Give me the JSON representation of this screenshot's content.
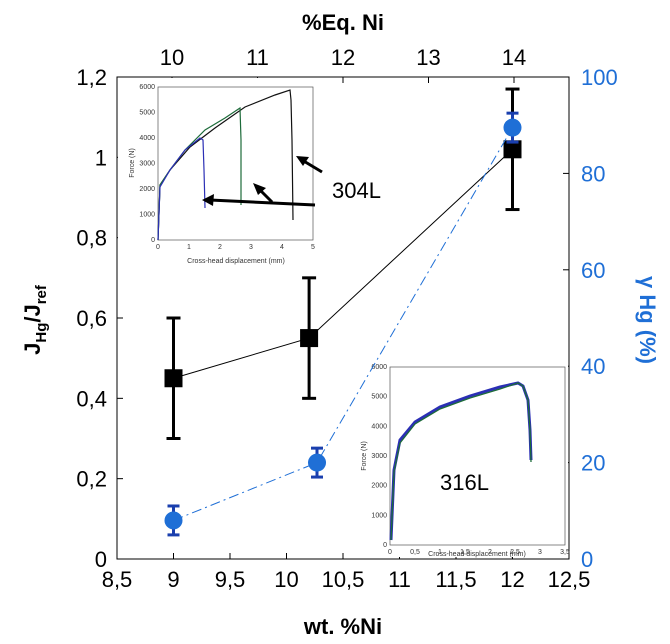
{
  "chart_data": {
    "type": "line",
    "main": {
      "xlabel": "wt. %Ni",
      "x_top_label": "%Eq. Ni",
      "ylabel_left": "J_Hg/J_ref",
      "ylabel_right": "γ Hg (%)",
      "xlim": [
        8.5,
        12.5
      ],
      "ylim_left": [
        0,
        1.2
      ],
      "ylim_right": [
        0,
        100
      ],
      "x_ticks": [
        "8,5",
        "9",
        "9,5",
        "10",
        "10,5",
        "11",
        "11,5",
        "12",
        "12,5"
      ],
      "y_left_ticks": [
        "0",
        "0,2",
        "0,4",
        "0,6",
        "0,8",
        "1",
        "1,2"
      ],
      "y_right_ticks": [
        "0",
        "20",
        "40",
        "60",
        "80",
        "100"
      ],
      "x_top_ticks": [
        "10",
        "11",
        "12",
        "13",
        "14"
      ],
      "colors": {
        "series_J": "#000000",
        "series_gamma": "#1f6fd6"
      },
      "series": [
        {
          "axis": "left",
          "x": [
            9.0,
            10.2,
            12.0
          ],
          "y": [
            0.45,
            0.55,
            1.02
          ],
          "err": [
            0.15,
            0.15,
            0.15
          ]
        },
        {
          "axis": "right",
          "x": [
            9.0,
            10.27,
            12.0
          ],
          "y": [
            8,
            20,
            89.5
          ],
          "err": [
            3,
            3,
            3
          ]
        }
      ]
    },
    "inset_304L": {
      "label": "304L",
      "xlabel": "Cross-head displacement (mm)",
      "ylabel": "Force (N)",
      "x_ticks": [
        "0",
        "1",
        "2",
        "3",
        "4",
        "5"
      ],
      "y_ticks": [
        "0",
        "1000",
        "2000",
        "3000",
        "4000",
        "5000",
        "6000"
      ]
    },
    "inset_316L": {
      "label": "316L",
      "xlabel": "Cross-head displacement (mm)",
      "ylabel": "Force (N)",
      "x_ticks": [
        "0",
        "0,5",
        "1",
        "1,5",
        "2",
        "2,5",
        "3",
        "3,5"
      ],
      "y_ticks": [
        "0",
        "1000",
        "2000",
        "3000",
        "4000",
        "5000",
        "6000"
      ]
    }
  }
}
